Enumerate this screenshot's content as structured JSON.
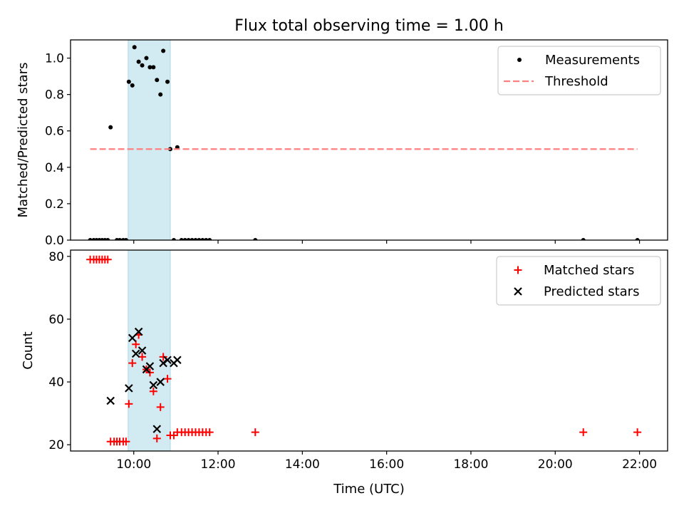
{
  "figure": {
    "title": "Flux total observing time = 1.00 h",
    "xlabel": "Time (UTC)"
  },
  "chart_data": [
    {
      "type": "scatter",
      "panel": "top",
      "ylabel": "Matched/Predicted stars",
      "xlim": [
        "08:30",
        "22:40"
      ],
      "ylim": [
        0,
        1.1
      ],
      "yticks": [
        0.0,
        0.2,
        0.4,
        0.6,
        0.8,
        1.0
      ],
      "ytick_labels": [
        "0.0",
        "0.2",
        "0.4",
        "0.6",
        "0.8",
        "1.0"
      ],
      "xticks": [
        "10:00",
        "12:00",
        "14:00",
        "16:00",
        "18:00",
        "20:00",
        "22:00"
      ],
      "shaded_span": [
        "09:52",
        "10:52"
      ],
      "shaded_color": "#add8e6",
      "legend": "top-right",
      "series": [
        {
          "name": "Measurements",
          "kind": "dot",
          "color": "#000000",
          "points": [
            [
              "08:58",
              0
            ],
            [
              "09:03",
              0
            ],
            [
              "09:07",
              0
            ],
            [
              "09:11",
              0
            ],
            [
              "09:15",
              0
            ],
            [
              "09:19",
              0
            ],
            [
              "09:23",
              0
            ],
            [
              "09:27",
              0.62
            ],
            [
              "09:36",
              0
            ],
            [
              "09:40",
              0
            ],
            [
              "09:45",
              0
            ],
            [
              "09:49",
              0
            ],
            [
              "09:53",
              0.87
            ],
            [
              "09:58",
              0.85
            ],
            [
              "10:01",
              1.06
            ],
            [
              "10:07",
              0.98
            ],
            [
              "10:12",
              0.96
            ],
            [
              "10:18",
              1.0
            ],
            [
              "10:23",
              0.95
            ],
            [
              "10:28",
              0.95
            ],
            [
              "10:33",
              0.88
            ],
            [
              "10:38",
              0.8
            ],
            [
              "10:42",
              1.04
            ],
            [
              "10:48",
              0.87
            ],
            [
              "10:52",
              0.5
            ],
            [
              "10:57",
              0
            ],
            [
              "11:02",
              0.51
            ],
            [
              "11:08",
              0
            ],
            [
              "11:13",
              0
            ],
            [
              "11:18",
              0
            ],
            [
              "11:23",
              0
            ],
            [
              "11:28",
              0
            ],
            [
              "11:33",
              0
            ],
            [
              "11:38",
              0
            ],
            [
              "11:43",
              0
            ],
            [
              "11:48",
              0
            ],
            [
              "12:53",
              0
            ],
            [
              "20:40",
              0
            ],
            [
              "21:57",
              0
            ]
          ]
        },
        {
          "name": "Threshold",
          "kind": "dashed-line",
          "color": "#ff8080",
          "points": [
            [
              "08:58",
              0.5
            ],
            [
              "21:57",
              0.5
            ]
          ]
        }
      ]
    },
    {
      "type": "scatter",
      "panel": "bottom",
      "ylabel": "Count",
      "xlim": [
        "08:30",
        "22:40"
      ],
      "ylim": [
        18,
        82
      ],
      "yticks": [
        20,
        40,
        60,
        80
      ],
      "ytick_labels": [
        "20",
        "40",
        "60",
        "80"
      ],
      "xticks": [
        "10:00",
        "12:00",
        "14:00",
        "16:00",
        "18:00",
        "20:00",
        "22:00"
      ],
      "xtick_labels": [
        "10:00",
        "12:00",
        "14:00",
        "16:00",
        "18:00",
        "20:00",
        "22:00"
      ],
      "shaded_span": [
        "09:52",
        "10:52"
      ],
      "shaded_color": "#add8e6",
      "legend": "top-right",
      "series": [
        {
          "name": "Matched stars",
          "kind": "plus",
          "color": "#ff0000",
          "points": [
            [
              "08:58",
              79
            ],
            [
              "09:03",
              79
            ],
            [
              "09:07",
              79
            ],
            [
              "09:11",
              79
            ],
            [
              "09:15",
              79
            ],
            [
              "09:19",
              79
            ],
            [
              "09:23",
              79
            ],
            [
              "09:27",
              21
            ],
            [
              "09:32",
              21
            ],
            [
              "09:36",
              21
            ],
            [
              "09:40",
              21
            ],
            [
              "09:45",
              21
            ],
            [
              "09:49",
              21
            ],
            [
              "09:53",
              33
            ],
            [
              "09:58",
              46
            ],
            [
              "10:03",
              52
            ],
            [
              "10:07",
              55
            ],
            [
              "10:12",
              48
            ],
            [
              "10:18",
              44
            ],
            [
              "10:23",
              43
            ],
            [
              "10:28",
              37
            ],
            [
              "10:33",
              22
            ],
            [
              "10:38",
              32
            ],
            [
              "10:42",
              48
            ],
            [
              "10:48",
              41
            ],
            [
              "10:52",
              23
            ],
            [
              "10:57",
              23
            ],
            [
              "11:02",
              24
            ],
            [
              "11:08",
              24
            ],
            [
              "11:13",
              24
            ],
            [
              "11:18",
              24
            ],
            [
              "11:23",
              24
            ],
            [
              "11:28",
              24
            ],
            [
              "11:33",
              24
            ],
            [
              "11:38",
              24
            ],
            [
              "11:43",
              24
            ],
            [
              "11:48",
              24
            ],
            [
              "12:53",
              24
            ],
            [
              "20:40",
              24
            ],
            [
              "21:57",
              24
            ]
          ]
        },
        {
          "name": "Predicted stars",
          "kind": "x",
          "color": "#000000",
          "points": [
            [
              "09:27",
              34
            ],
            [
              "09:53",
              38
            ],
            [
              "09:58",
              54
            ],
            [
              "10:03",
              49
            ],
            [
              "10:07",
              56
            ],
            [
              "10:12",
              50
            ],
            [
              "10:18",
              44
            ],
            [
              "10:23",
              45
            ],
            [
              "10:28",
              39
            ],
            [
              "10:33",
              25
            ],
            [
              "10:38",
              40
            ],
            [
              "10:42",
              46
            ],
            [
              "10:48",
              47
            ],
            [
              "10:57",
              46
            ],
            [
              "11:02",
              47
            ]
          ]
        }
      ]
    }
  ]
}
